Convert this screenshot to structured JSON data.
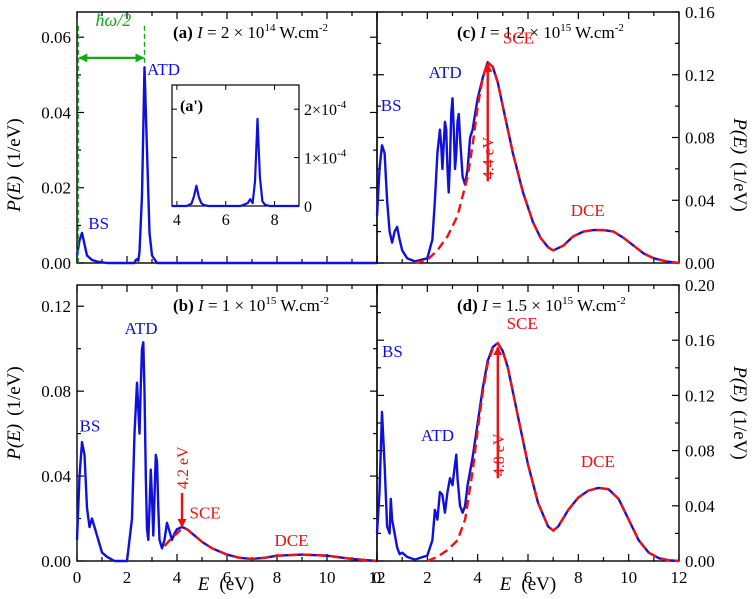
{
  "figure": {
    "x_axis_label": "E",
    "x_axis_unit": "(eV)",
    "y_axis_label": "P(E)",
    "y_axis_unit": "(1/eV)",
    "colors": {
      "full": "#1010dd",
      "model": "#ee1111",
      "hbar": "#11aa11",
      "axis": "#000000"
    }
  },
  "chart_data": [
    {
      "id": "a",
      "type": "line",
      "panel_label": "(a)",
      "intensity": {
        "prefix": "I = 2 × 10",
        "exponent": "14",
        "unit": " W.cm",
        "unit_exp": "-2"
      },
      "xlim": [
        0,
        12
      ],
      "ylim": [
        0,
        0.0667
      ],
      "yticks": [
        0,
        0.02,
        0.04,
        0.06
      ],
      "ytick_labels": [
        "0.00",
        "0.02",
        "0.04",
        "0.06"
      ],
      "y_side": "left",
      "show_x_tick_labels": false,
      "series": [
        {
          "name": "full",
          "style": "solid",
          "x": [
            0,
            0.1,
            0.2,
            0.3,
            0.4,
            0.6,
            0.8,
            1.2,
            2.3,
            2.35,
            2.4,
            2.45,
            2.5,
            2.6,
            2.7,
            2.8,
            2.9,
            3.0,
            3.2,
            12
          ],
          "y": [
            0.002,
            0.006,
            0.008,
            0.005,
            0.002,
            0.0008,
            0.0004,
            0,
            0,
            0.0008,
            0.001,
            0.0006,
            0.003,
            0.018,
            0.052,
            0.03,
            0.008,
            0.002,
            0,
            0
          ]
        }
      ],
      "annotations": [
        {
          "text": "ATD",
          "x": 2.8,
          "y": 0.05,
          "color": "full"
        },
        {
          "text": "BS",
          "x": 0.45,
          "y": 0.009,
          "color": "full"
        }
      ],
      "hbar": {
        "label": "ħω/2",
        "x0": 0.05,
        "x1": 2.7,
        "y_arrow": 0.0545,
        "y_top": 0.063
      },
      "inset": {
        "label": "(a')",
        "xlim": [
          3.8,
          9
        ],
        "ylim": [
          0,
          0.00025
        ],
        "xticks": [
          4,
          6,
          8
        ],
        "xtick_labels": [
          "4",
          "6",
          "8"
        ],
        "yticks": [
          0,
          0.0001,
          0.0002
        ],
        "ytick_labels": [
          "0",
          "1×10",
          "2×10"
        ],
        "ytick_exponents": [
          "",
          "-4",
          "-4"
        ],
        "x": [
          3.8,
          4.4,
          4.6,
          4.7,
          4.8,
          4.9,
          5.0,
          5.1,
          5.3,
          6.6,
          6.9,
          7.0,
          7.1,
          7.2,
          7.3,
          7.4,
          7.5,
          7.6,
          7.8,
          9.0
        ],
        "y": [
          0,
          0,
          5e-06,
          2e-05,
          4.2e-05,
          1.8e-05,
          6e-06,
          2e-06,
          0,
          0,
          6e-06,
          1.4e-05,
          6e-06,
          5e-05,
          0.00018,
          6e-05,
          1e-05,
          3e-06,
          0,
          0
        ]
      }
    },
    {
      "id": "b",
      "type": "line",
      "panel_label": "(b)",
      "intensity": {
        "prefix": "I = 1 × 10",
        "exponent": "15",
        "unit": " W.cm",
        "unit_exp": "-2"
      },
      "xlim": [
        0,
        12
      ],
      "ylim": [
        0,
        0.13
      ],
      "yticks": [
        0,
        0.04,
        0.08,
        0.12
      ],
      "ytick_labels": [
        "0.00",
        "0.04",
        "0.08",
        "0.12"
      ],
      "y_side": "left",
      "show_x_tick_labels": true,
      "xticks": [
        0,
        2,
        4,
        6,
        8,
        10,
        12
      ],
      "xtick_labels": [
        "0",
        "2",
        "4",
        "6",
        "8",
        "10",
        "12"
      ],
      "series": [
        {
          "name": "full",
          "style": "solid",
          "x": [
            0,
            0.1,
            0.2,
            0.3,
            0.4,
            0.5,
            0.6,
            0.7,
            0.8,
            0.9,
            1.0,
            1.2,
            1.5,
            2.0,
            2.2,
            2.3,
            2.4,
            2.5,
            2.55,
            2.6,
            2.65,
            2.7,
            2.75,
            2.8,
            2.85,
            2.9,
            2.95,
            3.0,
            3.05,
            3.1,
            3.15,
            3.2,
            3.25,
            3.3,
            3.4,
            3.5,
            3.6,
            3.7,
            3.8,
            3.9,
            4.0,
            4.2,
            4.4,
            4.6,
            4.8,
            5.0,
            5.4,
            6.0,
            6.5,
            7.0,
            7.5,
            8.0,
            9.0,
            10.0,
            11.0,
            12.0
          ],
          "y": [
            0.01,
            0.04,
            0.056,
            0.05,
            0.025,
            0.016,
            0.02,
            0.016,
            0.012,
            0.008,
            0.004,
            0.002,
            0,
            0,
            0.02,
            0.06,
            0.084,
            0.06,
            0.083,
            0.1,
            0.103,
            0.08,
            0.04,
            0.015,
            0.01,
            0.025,
            0.043,
            0.03,
            0.012,
            0.03,
            0.05,
            0.047,
            0.025,
            0.01,
            0.006,
            0.01,
            0.018,
            0.014,
            0.01,
            0.013,
            0.015,
            0.016,
            0.015,
            0.013,
            0.011,
            0.009,
            0.006,
            0.003,
            0.0015,
            0.001,
            0.0015,
            0.0025,
            0.003,
            0.0025,
            0.001,
            0
          ]
        },
        {
          "name": "model",
          "style": "dashed",
          "x": [
            3.5,
            3.8,
            4.0,
            4.2,
            4.4,
            4.6,
            4.8,
            5.0,
            5.4,
            6.0,
            6.5,
            7.0,
            7.5,
            8.0,
            9.0,
            10.0,
            11.0,
            12.0
          ],
          "y": [
            0.007,
            0.011,
            0.013,
            0.0155,
            0.015,
            0.013,
            0.011,
            0.009,
            0.006,
            0.003,
            0.0015,
            0.001,
            0.0015,
            0.0025,
            0.003,
            0.0025,
            0.001,
            0
          ]
        }
      ],
      "annotations": [
        {
          "text": "ATD",
          "x": 1.9,
          "y": 0.107,
          "color": "full"
        },
        {
          "text": "BS",
          "x": 0.1,
          "y": 0.061,
          "color": "full"
        },
        {
          "text": "SCE",
          "x": 4.5,
          "y": 0.02,
          "color": "model"
        },
        {
          "text": "DCE",
          "x": 7.9,
          "y": 0.007,
          "color": "model"
        }
      ],
      "arrow": {
        "label": "4.2 eV",
        "x": 4.2,
        "y_start": 0.032,
        "y_end": 0.016,
        "direction": "down"
      }
    },
    {
      "id": "c",
      "type": "line",
      "panel_label": "(c)",
      "intensity": {
        "prefix": "I = 1.2 × 10",
        "exponent": "15",
        "unit": " W.cm",
        "unit_exp": "-2"
      },
      "xlim": [
        0,
        12
      ],
      "ylim": [
        0,
        0.16
      ],
      "yticks": [
        0,
        0.04,
        0.08,
        0.12,
        0.16
      ],
      "ytick_labels": [
        "0.00",
        "0.04",
        "0.08",
        "0.12",
        "0.16"
      ],
      "y_side": "right",
      "show_x_tick_labels": false,
      "series": [
        {
          "name": "full",
          "style": "solid",
          "x": [
            0,
            0.1,
            0.2,
            0.3,
            0.4,
            0.5,
            0.6,
            0.7,
            0.8,
            0.9,
            1.0,
            1.2,
            1.5,
            2.0,
            2.2,
            2.3,
            2.4,
            2.5,
            2.55,
            2.6,
            2.65,
            2.7,
            2.75,
            2.8,
            2.85,
            2.9,
            2.95,
            3.0,
            3.05,
            3.1,
            3.15,
            3.2,
            3.25,
            3.3,
            3.4,
            3.5,
            3.6,
            3.7,
            3.8,
            3.9,
            4.0,
            4.2,
            4.4,
            4.6,
            4.8,
            5.0,
            5.4,
            5.8,
            6.2,
            6.5,
            6.8,
            7.0,
            7.4,
            7.8,
            8.2,
            8.6,
            9.0,
            9.4,
            9.8,
            10.2,
            10.6,
            11.0,
            11.5,
            12.0
          ],
          "y": [
            0.03,
            0.06,
            0.075,
            0.07,
            0.04,
            0.02,
            0.013,
            0.02,
            0.023,
            0.015,
            0.008,
            0.003,
            0.001,
            0.003,
            0.015,
            0.04,
            0.07,
            0.085,
            0.075,
            0.06,
            0.075,
            0.09,
            0.085,
            0.06,
            0.045,
            0.065,
            0.095,
            0.105,
            0.085,
            0.06,
            0.07,
            0.09,
            0.095,
            0.08,
            0.055,
            0.05,
            0.06,
            0.08,
            0.085,
            0.095,
            0.105,
            0.118,
            0.128,
            0.125,
            0.115,
            0.1,
            0.07,
            0.045,
            0.026,
            0.016,
            0.01,
            0.008,
            0.011,
            0.017,
            0.02,
            0.021,
            0.021,
            0.02,
            0.016,
            0.011,
            0.006,
            0.003,
            0.001,
            0
          ]
        },
        {
          "name": "model",
          "style": "dashed",
          "x": [
            1.5,
            2.0,
            2.4,
            2.8,
            3.2,
            3.6,
            3.8,
            4.0,
            4.2,
            4.4,
            4.6,
            4.8,
            5.0,
            5.4,
            5.8,
            6.2,
            6.5,
            6.8,
            7.0,
            7.4,
            7.8,
            8.2,
            8.6,
            9.0,
            9.4,
            9.8,
            10.2,
            10.6,
            11.0,
            11.5,
            12.0
          ],
          "y": [
            0,
            0.002,
            0.008,
            0.017,
            0.03,
            0.055,
            0.075,
            0.1,
            0.118,
            0.128,
            0.125,
            0.115,
            0.1,
            0.07,
            0.045,
            0.026,
            0.016,
            0.01,
            0.008,
            0.011,
            0.017,
            0.02,
            0.021,
            0.021,
            0.02,
            0.016,
            0.011,
            0.006,
            0.003,
            0.001,
            0
          ]
        }
      ],
      "annotations": [
        {
          "text": "ATD",
          "x": 2.05,
          "y": 0.118,
          "color": "full"
        },
        {
          "text": "BS",
          "x": 0.15,
          "y": 0.097,
          "color": "full"
        },
        {
          "text": "SCE",
          "x": 5.0,
          "y": 0.14,
          "color": "model"
        },
        {
          "text": "DCE",
          "x": 7.7,
          "y": 0.03,
          "color": "model"
        }
      ],
      "arrow": {
        "label": "4.4 eV",
        "x": 4.4,
        "y_start": 0.052,
        "y_end": 0.127,
        "direction": "up"
      }
    },
    {
      "id": "d",
      "type": "line",
      "panel_label": "(d)",
      "intensity": {
        "prefix": "I = 1.5 × 10",
        "exponent": "15",
        "unit": " W.cm",
        "unit_exp": "-2"
      },
      "xlim": [
        0,
        12
      ],
      "ylim": [
        0,
        0.2
      ],
      "yticks": [
        0,
        0.04,
        0.08,
        0.12,
        0.16,
        0.2
      ],
      "ytick_labels": [
        "0.00",
        "0.04",
        "0.08",
        "0.12",
        "0.16",
        "0.20"
      ],
      "y_side": "right",
      "show_x_tick_labels": true,
      "xticks": [
        0,
        2,
        4,
        6,
        8,
        10,
        12
      ],
      "xtick_labels": [
        "0",
        "2",
        "4",
        "6",
        "8",
        "10",
        "12"
      ],
      "series": [
        {
          "name": "full",
          "style": "solid",
          "x": [
            0,
            0.1,
            0.2,
            0.3,
            0.4,
            0.5,
            0.55,
            0.6,
            0.7,
            0.8,
            0.9,
            1.0,
            1.2,
            1.5,
            2.0,
            2.2,
            2.3,
            2.4,
            2.5,
            2.6,
            2.7,
            2.8,
            2.9,
            3.0,
            3.1,
            3.15,
            3.2,
            3.3,
            3.4,
            3.5,
            3.6,
            3.8,
            4.0,
            4.2,
            4.4,
            4.6,
            4.8,
            5.0,
            5.2,
            5.6,
            6.0,
            6.4,
            6.8,
            7.0,
            7.2,
            7.6,
            8.0,
            8.4,
            8.8,
            9.2,
            9.6,
            10.0,
            10.4,
            10.8,
            11.2,
            11.6,
            12.0
          ],
          "y": [
            0.02,
            0.05,
            0.108,
            0.07,
            0.025,
            0.02,
            0.045,
            0.03,
            0.02,
            0.01,
            0.005,
            0.006,
            0.003,
            0.001,
            0.004,
            0.015,
            0.037,
            0.03,
            0.05,
            0.048,
            0.035,
            0.05,
            0.06,
            0.055,
            0.07,
            0.077,
            0.06,
            0.04,
            0.035,
            0.04,
            0.055,
            0.075,
            0.1,
            0.125,
            0.145,
            0.155,
            0.158,
            0.152,
            0.14,
            0.105,
            0.07,
            0.042,
            0.025,
            0.022,
            0.025,
            0.037,
            0.046,
            0.051,
            0.053,
            0.052,
            0.045,
            0.03,
            0.015,
            0.006,
            0.002,
            0.0005,
            0
          ]
        },
        {
          "name": "model",
          "style": "dashed",
          "x": [
            2.0,
            2.4,
            2.8,
            3.2,
            3.5,
            3.8,
            4.0,
            4.2,
            4.4,
            4.6,
            4.8,
            5.0,
            5.2,
            5.6,
            6.0,
            6.4,
            6.8,
            7.0,
            7.2,
            7.6,
            8.0,
            8.4,
            8.8,
            9.2,
            9.6,
            10.0,
            10.4,
            10.8,
            11.2,
            11.6,
            12.0
          ],
          "y": [
            0,
            0.003,
            0.008,
            0.015,
            0.03,
            0.065,
            0.095,
            0.122,
            0.143,
            0.154,
            0.158,
            0.152,
            0.14,
            0.105,
            0.07,
            0.042,
            0.025,
            0.022,
            0.025,
            0.037,
            0.046,
            0.051,
            0.053,
            0.052,
            0.045,
            0.03,
            0.015,
            0.006,
            0.002,
            0.0005,
            0
          ]
        }
      ],
      "annotations": [
        {
          "text": "ATD",
          "x": 1.75,
          "y": 0.087,
          "color": "full"
        },
        {
          "text": "BS",
          "x": 0.2,
          "y": 0.148,
          "color": "full"
        },
        {
          "text": "SCE",
          "x": 5.15,
          "y": 0.168,
          "color": "model"
        },
        {
          "text": "DCE",
          "x": 8.1,
          "y": 0.068,
          "color": "model"
        }
      ],
      "arrow": {
        "label": "4.8 eV",
        "x": 4.8,
        "y_start": 0.06,
        "y_end": 0.155,
        "direction": "up"
      }
    }
  ]
}
